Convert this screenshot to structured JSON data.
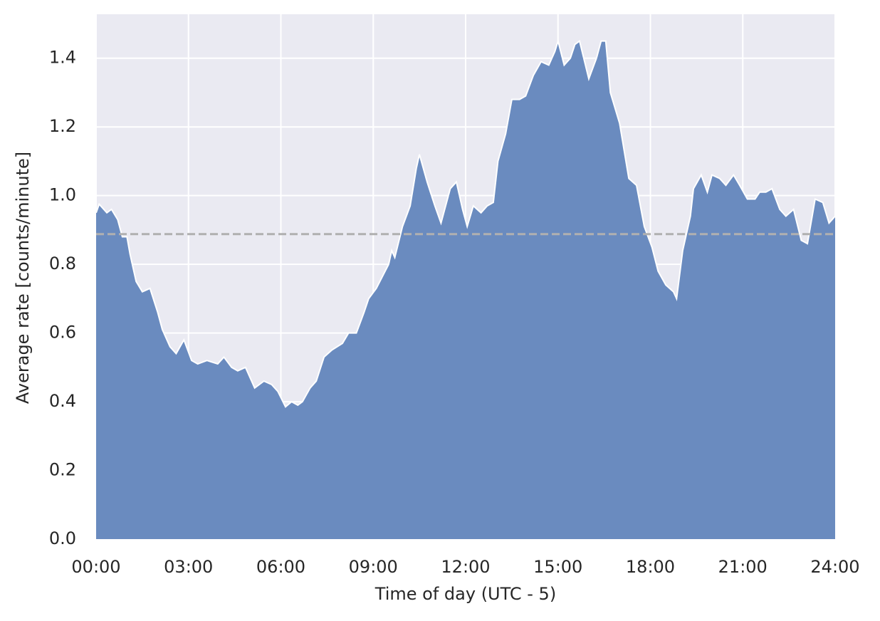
{
  "chart_data": {
    "type": "area",
    "xlabel": "Time of day (UTC - 5)",
    "ylabel": "Average rate [counts/minute]",
    "x": [
      0,
      0.1,
      0.35,
      0.5,
      0.7,
      0.85,
      1.0,
      1.1,
      1.3,
      1.5,
      1.75,
      2.0,
      2.15,
      2.4,
      2.6,
      2.85,
      3.1,
      3.3,
      3.6,
      3.95,
      4.15,
      4.4,
      4.6,
      4.85,
      5.15,
      5.45,
      5.7,
      5.9,
      6.15,
      6.35,
      6.55,
      6.7,
      6.95,
      7.15,
      7.4,
      7.65,
      8.0,
      8.2,
      8.45,
      8.7,
      8.85,
      9.1,
      9.5,
      9.6,
      9.7,
      9.95,
      10.2,
      10.4,
      10.5,
      10.75,
      11.0,
      11.2,
      11.5,
      11.7,
      11.9,
      12.05,
      12.25,
      12.5,
      12.7,
      12.9,
      13.05,
      13.3,
      13.5,
      13.75,
      13.95,
      14.2,
      14.45,
      14.7,
      14.9,
      15.0,
      15.2,
      15.4,
      15.55,
      15.7,
      16.0,
      16.25,
      16.4,
      16.55,
      16.7,
      17.0,
      17.3,
      17.55,
      17.8,
      18.05,
      18.25,
      18.5,
      18.75,
      18.85,
      19.05,
      19.3,
      19.4,
      19.65,
      19.85,
      20.0,
      20.25,
      20.45,
      20.7,
      20.9,
      21.15,
      21.4,
      21.55,
      21.75,
      21.95,
      22.2,
      22.4,
      22.65,
      22.9,
      23.1,
      23.35,
      23.6,
      23.8,
      24.0
    ],
    "values": [
      0.95,
      0.975,
      0.95,
      0.96,
      0.93,
      0.88,
      0.88,
      0.83,
      0.75,
      0.72,
      0.73,
      0.66,
      0.61,
      0.56,
      0.54,
      0.58,
      0.52,
      0.51,
      0.52,
      0.51,
      0.53,
      0.5,
      0.49,
      0.5,
      0.44,
      0.46,
      0.45,
      0.43,
      0.385,
      0.4,
      0.39,
      0.4,
      0.44,
      0.46,
      0.53,
      0.55,
      0.57,
      0.6,
      0.6,
      0.66,
      0.7,
      0.73,
      0.8,
      0.84,
      0.82,
      0.91,
      0.97,
      1.08,
      1.12,
      1.04,
      0.97,
      0.92,
      1.02,
      1.04,
      0.96,
      0.91,
      0.97,
      0.95,
      0.97,
      0.98,
      1.1,
      1.18,
      1.28,
      1.28,
      1.29,
      1.35,
      1.39,
      1.38,
      1.42,
      1.45,
      1.38,
      1.4,
      1.44,
      1.45,
      1.34,
      1.4,
      1.45,
      1.45,
      1.3,
      1.21,
      1.05,
      1.03,
      0.91,
      0.85,
      0.78,
      0.74,
      0.72,
      0.7,
      0.84,
      0.94,
      1.02,
      1.06,
      1.01,
      1.06,
      1.05,
      1.03,
      1.06,
      1.03,
      0.99,
      0.99,
      1.01,
      1.01,
      1.02,
      0.96,
      0.94,
      0.96,
      0.87,
      0.86,
      0.99,
      0.98,
      0.92,
      0.94
    ],
    "color": "#6a8bbf",
    "line_color": "#ffffff",
    "hline": 0.888,
    "hline_color": "#b0b0b0",
    "xlim": [
      0,
      24
    ],
    "xticks": [
      {
        "value": 0,
        "label": "00:00"
      },
      {
        "value": 3,
        "label": "03:00"
      },
      {
        "value": 6,
        "label": "06:00"
      },
      {
        "value": 9,
        "label": "09:00"
      },
      {
        "value": 12,
        "label": "12:00"
      },
      {
        "value": 15,
        "label": "15:00"
      },
      {
        "value": 18,
        "label": "18:00"
      },
      {
        "value": 21,
        "label": "21:00"
      },
      {
        "value": 24,
        "label": "24:00"
      }
    ],
    "ylim": [
      0,
      1.528
    ],
    "yticks": [
      {
        "value": 0,
        "label": "0.0"
      },
      {
        "value": 0.2,
        "label": "0.2"
      },
      {
        "value": 0.4,
        "label": "0.4"
      },
      {
        "value": 0.6,
        "label": "0.6"
      },
      {
        "value": 0.8,
        "label": "0.8"
      },
      {
        "value": 1.0,
        "label": "1.0"
      },
      {
        "value": 1.2,
        "label": "1.2"
      },
      {
        "value": 1.4,
        "label": "1.4"
      }
    ],
    "grid": true
  }
}
